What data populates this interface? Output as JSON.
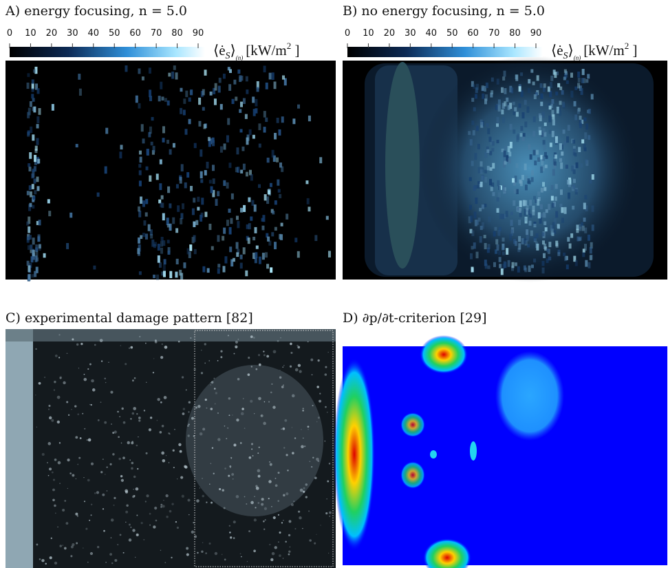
{
  "panels": [
    {
      "title": "A) energy focusing, n = 5.0",
      "colorbar": {
        "ticks": [
          0,
          10,
          20,
          30,
          40,
          50,
          60,
          70,
          80,
          90
        ],
        "label_open": "⟨ė",
        "label_sub": "S",
        "label_close": "⟩",
        "label_index": "(n)",
        "label_unit": "[kW/m",
        "label_sup": "2",
        "label_end": " ]"
      }
    },
    {
      "title": "B) no energy focusing, n = 5.0",
      "colorbar": {
        "ticks": [
          0,
          10,
          20,
          30,
          40,
          50,
          60,
          70,
          80,
          90
        ],
        "label_open": "⟨ė",
        "label_sub": "S",
        "label_close": "⟩",
        "label_index": "(n)",
        "label_unit": "[kW/m",
        "label_sup": "2",
        "label_end": " ]"
      }
    },
    {
      "title": "C) experimental damage pattern [82]"
    },
    {
      "title": "D) ∂p/∂t-criterion [29]"
    }
  ]
}
